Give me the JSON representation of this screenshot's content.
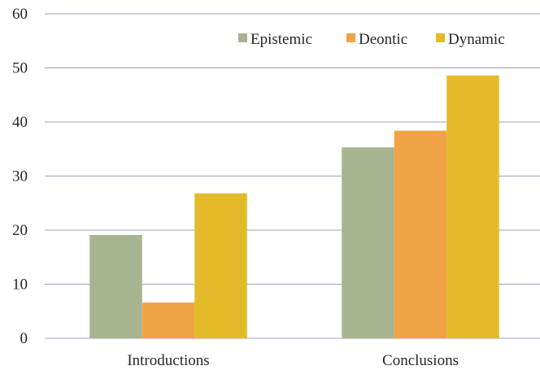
{
  "chart_data": {
    "type": "bar",
    "categories": [
      "Introductions",
      "Conclusions"
    ],
    "series": [
      {
        "name": "Epistemic",
        "color": "#a6b490",
        "values": [
          19.1,
          35.3
        ]
      },
      {
        "name": "Deontic",
        "color": "#f0a445",
        "values": [
          6.6,
          38.4
        ]
      },
      {
        "name": "Dynamic",
        "color": "#e3bb2a",
        "values": [
          26.8,
          48.6
        ]
      }
    ],
    "title": "",
    "xlabel": "",
    "ylabel": "",
    "ylim": [
      0,
      60
    ],
    "yticks": [
      0,
      10,
      20,
      30,
      40,
      50,
      60
    ],
    "grid": true,
    "legend_position": "top-right"
  }
}
